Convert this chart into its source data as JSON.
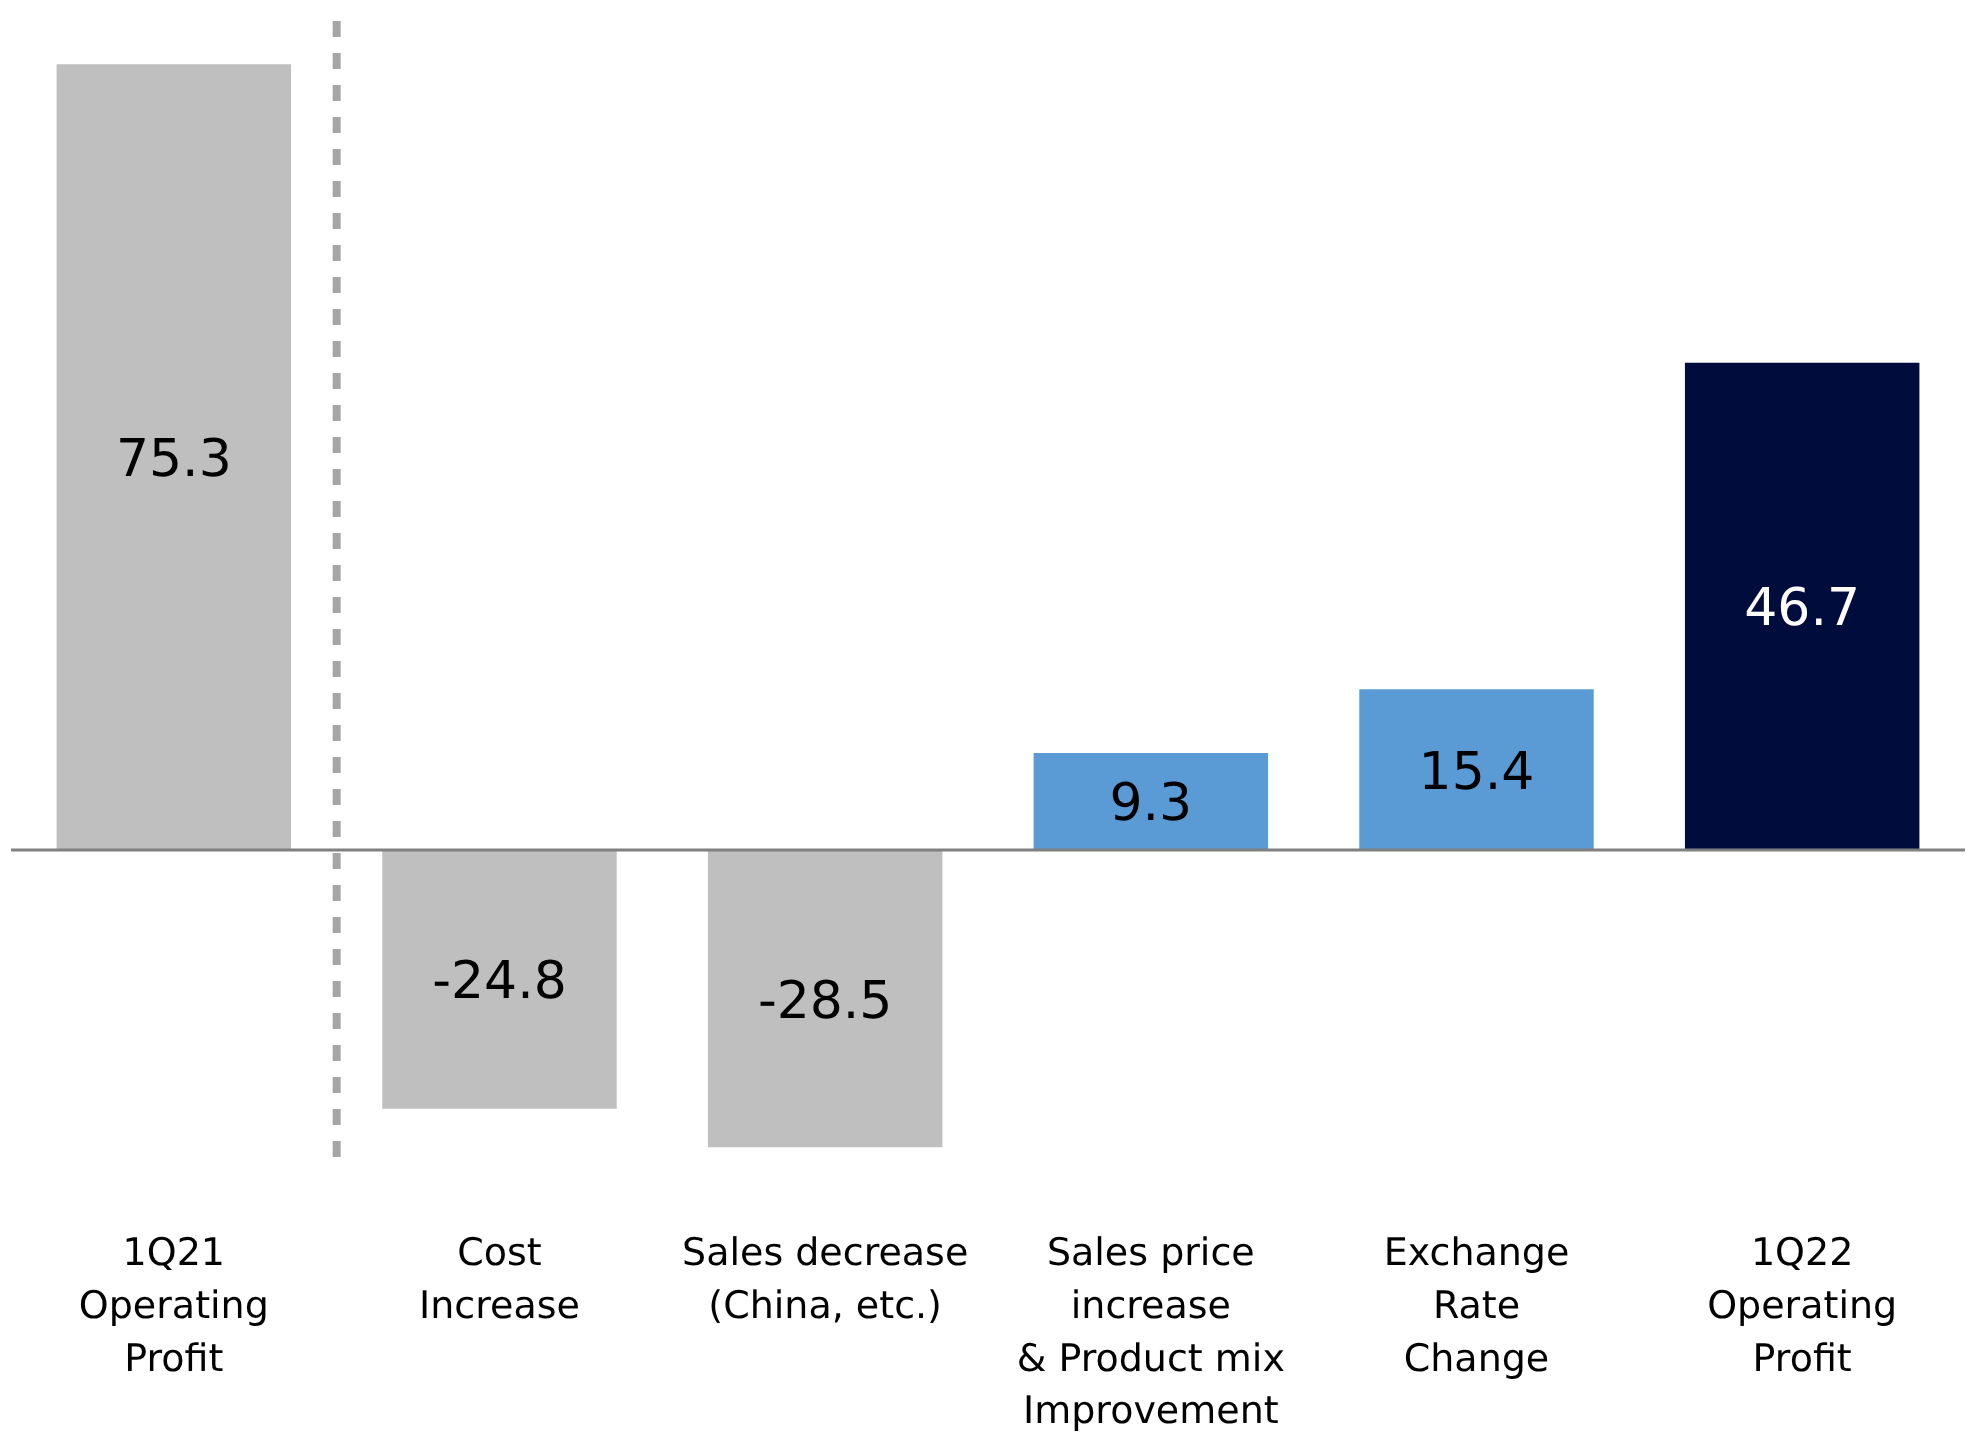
{
  "chart_data": {
    "type": "bar",
    "categories": [
      "1Q21\nOperating\nProfit",
      "Cost\nIncrease",
      "Sales decrease\n(China, etc.)",
      "Sales price\nincrease\n& Product mix\nImprovement",
      "Exchange\nRate\nChange",
      "1Q22\nOperating\nProfit"
    ],
    "values": [
      75.3,
      -24.8,
      -28.5,
      9.3,
      15.4,
      46.7
    ],
    "colors": [
      "#bfbfbf",
      "#bfbfbf",
      "#bfbfbf",
      "#5b9bd5",
      "#5b9bd5",
      "#000c3c"
    ],
    "data_labels": true,
    "grid": false
  }
}
